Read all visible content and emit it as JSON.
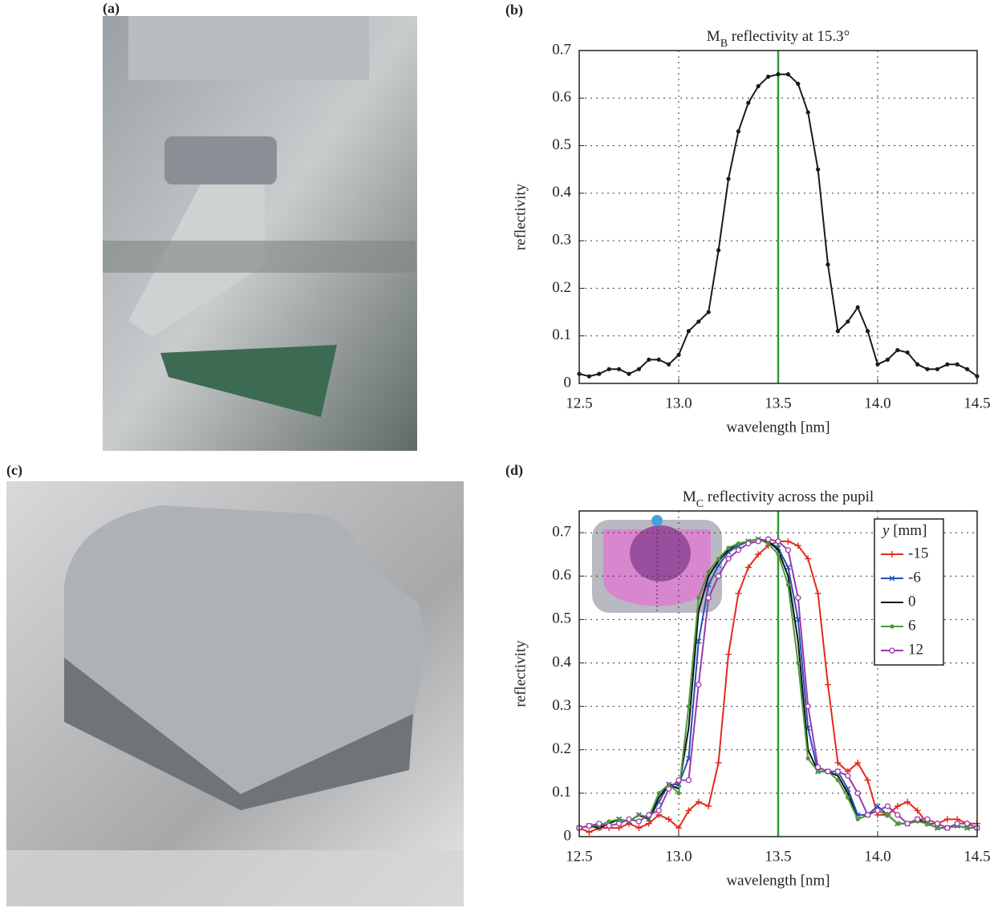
{
  "panels": [
    "(a)",
    "(b)",
    "(c)",
    "(d)"
  ],
  "chart_data": [
    {
      "type": "line",
      "title": [
        "M",
        "B",
        " reflectivity at 15.3°"
      ],
      "xlabel": "wavelength [nm]",
      "ylabel": "reflectivity",
      "xlim": [
        12.5,
        14.5
      ],
      "ylim": [
        0,
        0.7
      ],
      "xticks": [
        12.5,
        {
          "value": 13.0,
          "label": "13.0"
        },
        13.5,
        {
          "value": 14.0,
          "label": "14.0"
        },
        14.5
      ],
      "yticks": [
        0,
        0.1,
        0.2,
        0.3,
        0.4,
        0.5,
        0.6,
        0.7
      ],
      "grid": true,
      "vline": 13.5,
      "vline_color": "#2e9a3c",
      "x": [
        12.5,
        12.55,
        12.6,
        12.65,
        12.7,
        12.75,
        12.8,
        12.85,
        12.9,
        12.95,
        13.0,
        13.05,
        13.1,
        13.15,
        13.2,
        13.25,
        13.3,
        13.35,
        13.4,
        13.45,
        13.5,
        13.55,
        13.6,
        13.65,
        13.7,
        13.75,
        13.8,
        13.85,
        13.9,
        13.95,
        14.0,
        14.05,
        14.1,
        14.15,
        14.2,
        14.25,
        14.3,
        14.35,
        14.4,
        14.45,
        14.5
      ],
      "series": [
        {
          "color": "#1a1a1a",
          "marker": "dot",
          "values": [
            0.02,
            0.015,
            0.02,
            0.03,
            0.03,
            0.02,
            0.03,
            0.05,
            0.05,
            0.04,
            0.06,
            0.11,
            0.13,
            0.15,
            0.28,
            0.43,
            0.53,
            0.59,
            0.625,
            0.645,
            0.65,
            0.65,
            0.63,
            0.57,
            0.45,
            0.25,
            0.11,
            0.13,
            0.16,
            0.11,
            0.04,
            0.05,
            0.07,
            0.065,
            0.04,
            0.03,
            0.03,
            0.04,
            0.04,
            0.03,
            0.015
          ]
        }
      ]
    },
    {
      "type": "line",
      "title": [
        "M",
        "C",
        " reflectivity across the pupil"
      ],
      "xlabel": "wavelength [nm]",
      "ylabel": "reflectivity",
      "xlim": [
        12.5,
        14.5
      ],
      "ylim": [
        0,
        0.75
      ],
      "xticks": [
        12.5,
        {
          "value": 13.0,
          "label": "13.0"
        },
        13.5,
        {
          "value": 14.0,
          "label": "14.0"
        },
        14.5
      ],
      "yticks": [
        0,
        0.1,
        0.2,
        0.3,
        0.4,
        0.5,
        0.6,
        0.7
      ],
      "grid": true,
      "vline": 13.5,
      "vline_color": "#2e9a3c",
      "legend_title": [
        "y",
        " [mm]"
      ],
      "legend": "top-right",
      "x": [
        12.5,
        12.55,
        12.6,
        12.65,
        12.7,
        12.75,
        12.8,
        12.85,
        12.9,
        12.95,
        13.0,
        13.05,
        13.1,
        13.15,
        13.2,
        13.25,
        13.3,
        13.35,
        13.4,
        13.45,
        13.5,
        13.55,
        13.6,
        13.65,
        13.7,
        13.75,
        13.8,
        13.85,
        13.9,
        13.95,
        14.0,
        14.05,
        14.1,
        14.15,
        14.2,
        14.25,
        14.3,
        14.35,
        14.4,
        14.45,
        14.5
      ],
      "series": [
        {
          "name": "-15",
          "color": "#e02a1e",
          "marker": "plus",
          "values": [
            0.02,
            0.01,
            0.02,
            0.02,
            0.02,
            0.03,
            0.02,
            0.03,
            0.05,
            0.04,
            0.02,
            0.06,
            0.08,
            0.07,
            0.17,
            0.42,
            0.56,
            0.62,
            0.65,
            0.67,
            0.68,
            0.68,
            0.67,
            0.64,
            0.56,
            0.35,
            0.17,
            0.15,
            0.17,
            0.13,
            0.05,
            0.05,
            0.07,
            0.08,
            0.06,
            0.03,
            0.03,
            0.04,
            0.04,
            0.03,
            0.03
          ]
        },
        {
          "name": "-6",
          "color": "#2250b8",
          "marker": "cross",
          "values": [
            0.02,
            0.025,
            0.02,
            0.03,
            0.04,
            0.035,
            0.05,
            0.04,
            0.08,
            0.12,
            0.12,
            0.18,
            0.45,
            0.58,
            0.625,
            0.655,
            0.67,
            0.68,
            0.685,
            0.68,
            0.665,
            0.62,
            0.5,
            0.25,
            0.15,
            0.15,
            0.15,
            0.11,
            0.05,
            0.05,
            0.07,
            0.05,
            0.03,
            0.03,
            0.04,
            0.03,
            0.02,
            0.02,
            0.025,
            0.02,
            0.02
          ]
        },
        {
          "name": "0",
          "color": "#111111",
          "marker": "none",
          "values": [
            0.02,
            0.025,
            0.02,
            0.03,
            0.04,
            0.035,
            0.05,
            0.04,
            0.09,
            0.12,
            0.11,
            0.25,
            0.52,
            0.6,
            0.635,
            0.66,
            0.675,
            0.68,
            0.685,
            0.68,
            0.66,
            0.6,
            0.45,
            0.2,
            0.15,
            0.15,
            0.14,
            0.1,
            0.04,
            0.05,
            0.06,
            0.05,
            0.03,
            0.03,
            0.04,
            0.03,
            0.02,
            0.02,
            0.025,
            0.02,
            0.02
          ]
        },
        {
          "name": "6",
          "color": "#4a9a3a",
          "marker": "dot",
          "values": [
            0.02,
            0.025,
            0.025,
            0.035,
            0.04,
            0.035,
            0.05,
            0.045,
            0.1,
            0.12,
            0.1,
            0.3,
            0.55,
            0.61,
            0.64,
            0.665,
            0.675,
            0.68,
            0.685,
            0.675,
            0.65,
            0.58,
            0.4,
            0.18,
            0.15,
            0.15,
            0.13,
            0.09,
            0.04,
            0.05,
            0.06,
            0.05,
            0.03,
            0.03,
            0.035,
            0.03,
            0.02,
            0.02,
            0.025,
            0.02,
            0.02
          ]
        },
        {
          "name": "12",
          "color": "#9a3aa8",
          "marker": "circle",
          "values": [
            0.02,
            0.025,
            0.03,
            0.025,
            0.03,
            0.04,
            0.035,
            0.05,
            0.06,
            0.11,
            0.13,
            0.13,
            0.35,
            0.55,
            0.6,
            0.64,
            0.66,
            0.675,
            0.68,
            0.685,
            0.68,
            0.66,
            0.55,
            0.3,
            0.16,
            0.15,
            0.15,
            0.14,
            0.1,
            0.05,
            0.06,
            0.07,
            0.05,
            0.03,
            0.04,
            0.04,
            0.03,
            0.02,
            0.03,
            0.03,
            0.02
          ]
        }
      ]
    }
  ]
}
